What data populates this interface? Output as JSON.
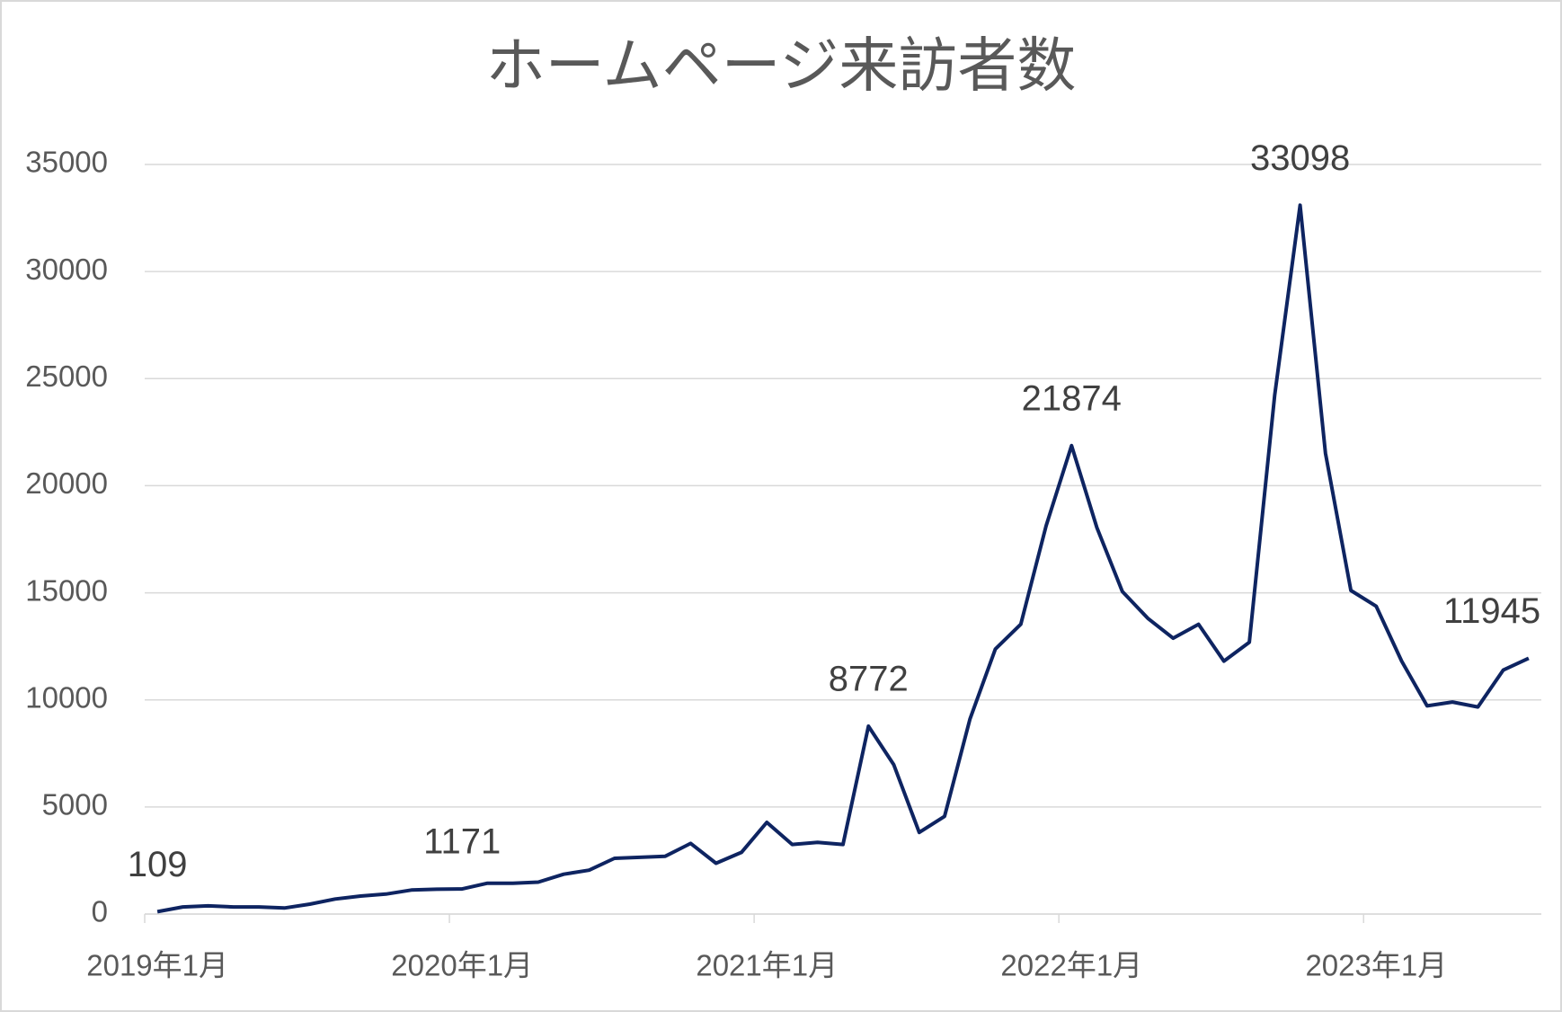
{
  "chart_data": {
    "type": "line",
    "title": "ホームページ来訪者数",
    "categories": [
      "2019年1月",
      null,
      null,
      null,
      null,
      null,
      null,
      null,
      null,
      null,
      null,
      null,
      "2020年1月",
      null,
      null,
      null,
      null,
      null,
      null,
      null,
      null,
      null,
      null,
      null,
      "2021年1月",
      null,
      null,
      null,
      null,
      null,
      null,
      null,
      null,
      null,
      null,
      null,
      "2022年1月",
      null,
      null,
      null,
      null,
      null,
      null,
      null,
      null,
      null,
      null,
      null,
      "2023年1月",
      null,
      null,
      null,
      null,
      null,
      null
    ],
    "series": [
      {
        "name": "ホームページ来訪者数",
        "color": "#0e2461",
        "values": [
          109,
          330,
          380,
          330,
          330,
          280,
          460,
          700,
          840,
          930,
          1120,
          1160,
          1171,
          1440,
          1440,
          1490,
          1860,
          2050,
          2600,
          2650,
          2700,
          3300,
          2370,
          2880,
          4280,
          3250,
          3350,
          3250,
          8772,
          6970,
          3810,
          4560,
          9110,
          12370,
          13530,
          18130,
          21874,
          18040,
          15060,
          13810,
          12880,
          13530,
          11810,
          12690,
          24220,
          33098,
          21520,
          15110,
          14370,
          11810,
          9720,
          9900,
          9670,
          11390,
          11945
        ],
        "value_labels": [
          "109",
          null,
          null,
          null,
          null,
          null,
          null,
          null,
          null,
          null,
          null,
          null,
          "1171",
          null,
          null,
          null,
          null,
          null,
          null,
          null,
          null,
          null,
          null,
          null,
          null,
          null,
          null,
          null,
          "8772",
          null,
          null,
          null,
          null,
          null,
          null,
          null,
          "21874",
          null,
          null,
          null,
          null,
          null,
          null,
          null,
          null,
          "33098",
          null,
          null,
          null,
          null,
          null,
          null,
          null,
          null,
          "11945"
        ]
      }
    ],
    "ylim": [
      0,
      35000
    ],
    "yticks": [
      0,
      5000,
      10000,
      15000,
      20000,
      25000,
      30000,
      35000
    ],
    "grid": true
  }
}
